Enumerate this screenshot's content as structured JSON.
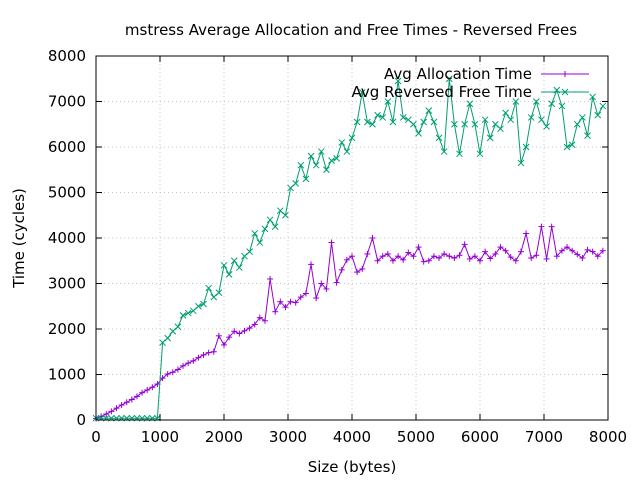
{
  "chart_data": {
    "type": "line",
    "title": "mstress Average Allocation and Free Times - Reversed Frees",
    "xlabel": "Size (bytes)",
    "ylabel": "Time (cycles)",
    "xlim": [
      0,
      8000
    ],
    "ylim": [
      0,
      8000
    ],
    "xticks": [
      0,
      1000,
      2000,
      3000,
      4000,
      5000,
      6000,
      7000,
      8000
    ],
    "yticks": [
      0,
      1000,
      2000,
      3000,
      4000,
      5000,
      6000,
      7000,
      8000
    ],
    "xtick_labels": [
      "0",
      "1000",
      "2000",
      "3000",
      "4000",
      "5000",
      "6000",
      "7000",
      "8000"
    ],
    "ytick_labels": [
      "0",
      "1000",
      "2000",
      "3000",
      "4000",
      "5000",
      "6000",
      "7000",
      "8000"
    ],
    "grid": true,
    "legend_position": "top-right",
    "series": [
      {
        "name": "Avg Allocation Time",
        "color": "#9400d3",
        "marker": "plus",
        "x": [
          0,
          80,
          160,
          240,
          320,
          400,
          480,
          560,
          640,
          720,
          800,
          880,
          960,
          1040,
          1120,
          1200,
          1280,
          1360,
          1440,
          1520,
          1600,
          1680,
          1760,
          1840,
          1920,
          2000,
          2080,
          2160,
          2240,
          2320,
          2400,
          2480,
          2560,
          2640,
          2720,
          2800,
          2880,
          2960,
          3040,
          3120,
          3200,
          3280,
          3360,
          3440,
          3520,
          3600,
          3680,
          3760,
          3840,
          3920,
          4000,
          4080,
          4160,
          4240,
          4320,
          4400,
          4480,
          4560,
          4640,
          4720,
          4800,
          4880,
          4960,
          5040,
          5120,
          5200,
          5280,
          5360,
          5440,
          5520,
          5600,
          5680,
          5760,
          5840,
          5920,
          6000,
          6080,
          6160,
          6240,
          6320,
          6400,
          6480,
          6560,
          6640,
          6720,
          6800,
          6880,
          6960,
          7040,
          7120,
          7200,
          7280,
          7360,
          7440,
          7520,
          7600,
          7680,
          7760,
          7840,
          7920
        ],
        "values": [
          30,
          80,
          130,
          190,
          260,
          330,
          390,
          450,
          520,
          600,
          660,
          720,
          790,
          920,
          1010,
          1050,
          1110,
          1190,
          1250,
          1300,
          1370,
          1430,
          1480,
          1500,
          1850,
          1650,
          1820,
          1950,
          1900,
          1960,
          2020,
          2100,
          2250,
          2180,
          3100,
          2380,
          2600,
          2480,
          2600,
          2580,
          2700,
          2780,
          3420,
          2680,
          3000,
          2880,
          3900,
          3020,
          3300,
          3520,
          3600,
          3250,
          3320,
          3650,
          4000,
          3500,
          3600,
          3650,
          3500,
          3600,
          3520,
          3680,
          3600,
          3800,
          3480,
          3500,
          3600,
          3560,
          3650,
          3600,
          3560,
          3620,
          3860,
          3540,
          3600,
          3500,
          3700,
          3550,
          3650,
          3800,
          3720,
          3580,
          3500,
          3700,
          4100,
          3560,
          3620,
          4250,
          3540,
          4250,
          3600,
          3720,
          3800,
          3720,
          3640,
          3560,
          3740,
          3700,
          3600,
          3720
        ]
      },
      {
        "name": "Avg Reversed Free Time",
        "color": "#009e73",
        "marker": "cross",
        "x": [
          0,
          80,
          160,
          240,
          320,
          400,
          480,
          560,
          640,
          720,
          800,
          880,
          960,
          1040,
          1120,
          1200,
          1280,
          1360,
          1440,
          1520,
          1600,
          1680,
          1760,
          1840,
          1920,
          2000,
          2080,
          2160,
          2240,
          2320,
          2400,
          2480,
          2560,
          2640,
          2720,
          2800,
          2880,
          2960,
          3040,
          3120,
          3200,
          3280,
          3360,
          3440,
          3520,
          3600,
          3680,
          3760,
          3840,
          3920,
          4000,
          4080,
          4160,
          4240,
          4320,
          4400,
          4480,
          4560,
          4640,
          4720,
          4800,
          4880,
          4960,
          5040,
          5120,
          5200,
          5280,
          5360,
          5440,
          5520,
          5600,
          5680,
          5760,
          5840,
          5920,
          6000,
          6080,
          6160,
          6240,
          6320,
          6400,
          6480,
          6560,
          6640,
          6720,
          6800,
          6880,
          6960,
          7040,
          7120,
          7200,
          7280,
          7360,
          7440,
          7520,
          7600,
          7680,
          7760,
          7840,
          7920
        ],
        "values": [
          40,
          40,
          40,
          40,
          40,
          40,
          40,
          40,
          40,
          40,
          40,
          40,
          40,
          1700,
          1800,
          1950,
          2050,
          2300,
          2350,
          2400,
          2500,
          2550,
          2900,
          2700,
          2800,
          3400,
          3200,
          3500,
          3350,
          3600,
          3700,
          4100,
          3900,
          4200,
          4400,
          4250,
          4600,
          4500,
          5100,
          5200,
          5600,
          5300,
          5800,
          5600,
          5900,
          5500,
          5700,
          5750,
          6100,
          5900,
          6200,
          6550,
          7200,
          6550,
          6500,
          6700,
          6650,
          7000,
          6550,
          7450,
          6650,
          6600,
          6500,
          6300,
          6550,
          6800,
          6550,
          6200,
          5900,
          7500,
          6500,
          5850,
          6500,
          6950,
          6500,
          5850,
          6600,
          6200,
          6500,
          6400,
          6750,
          6600,
          7000,
          5650,
          6000,
          6650,
          7000,
          6600,
          6450,
          6950,
          7250,
          6900,
          6000,
          6050,
          6500,
          6650,
          6250,
          7100,
          6700,
          6900
        ]
      }
    ]
  }
}
